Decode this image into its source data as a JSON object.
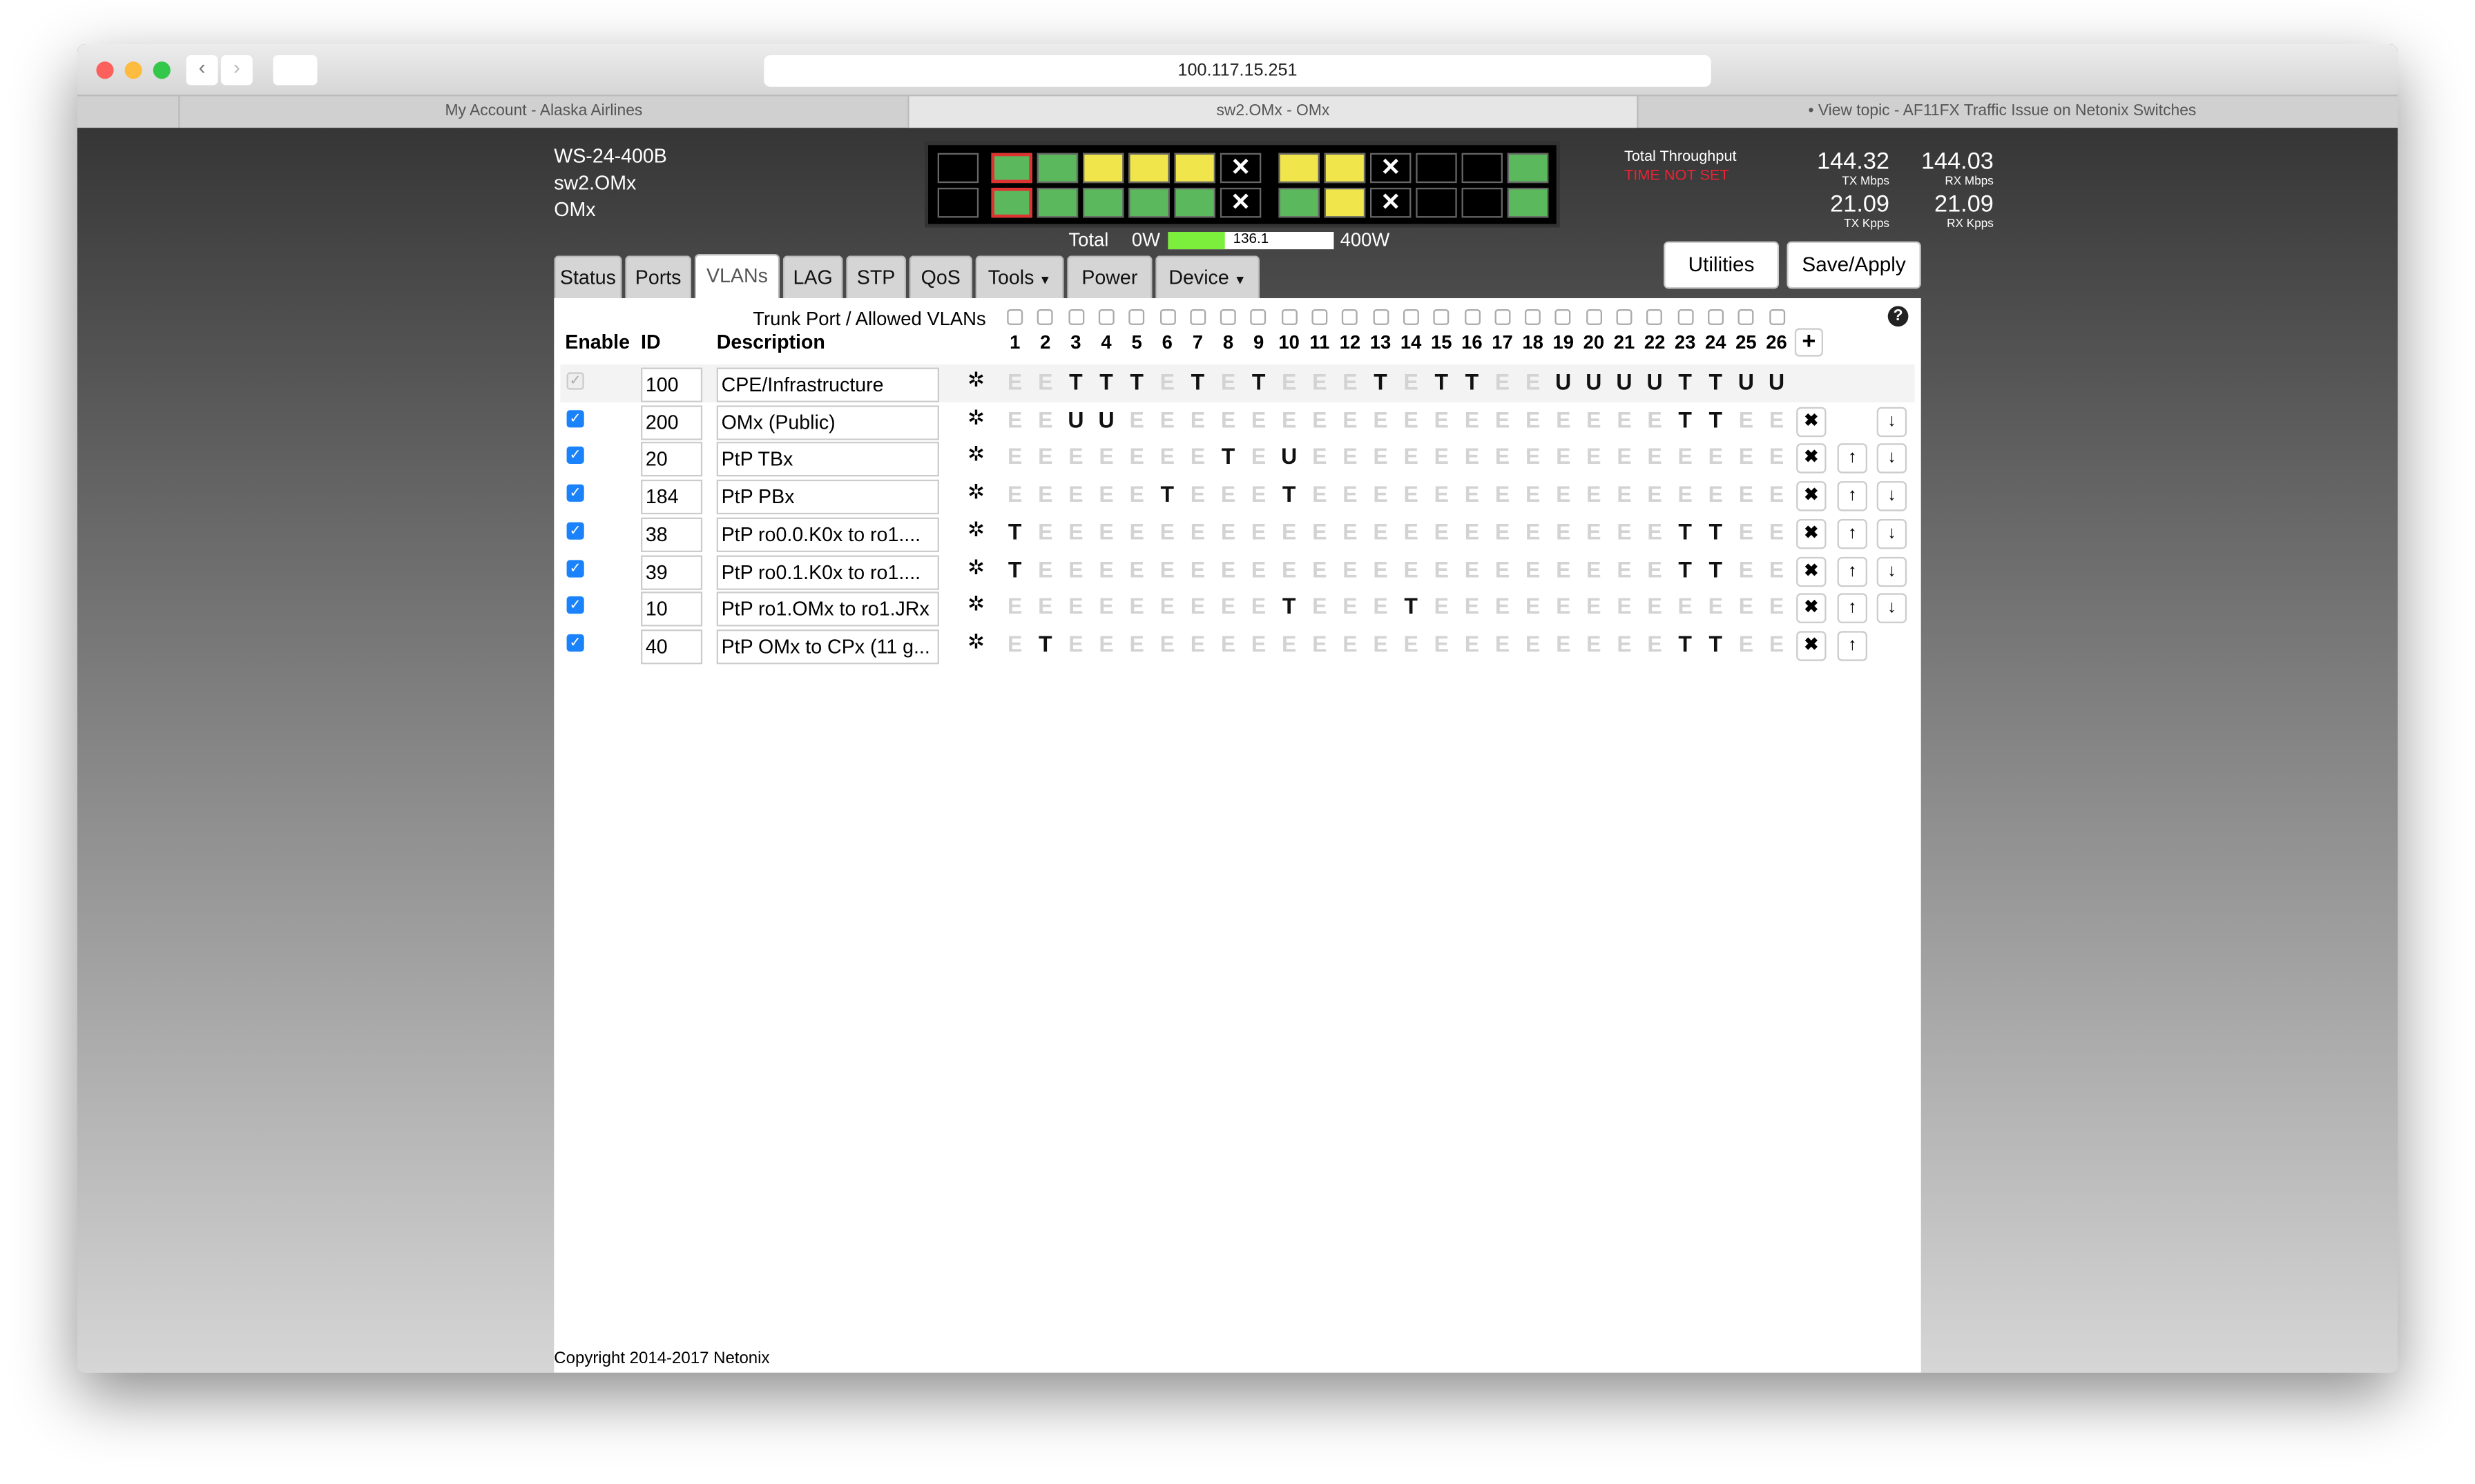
{
  "browser": {
    "url": "100.117.15.251",
    "tabs": [
      "My Account - Alaska Airlines",
      "sw2.OMx - OMx",
      "• View topic - AF11FX Traffic Issue on Netonix Switches"
    ]
  },
  "device": {
    "model": "WS-24-400B",
    "name": "sw2.OMx",
    "location": "OMx"
  },
  "power": {
    "label": "Total",
    "min": "0W",
    "value": 136.1,
    "max": "400W"
  },
  "throughput": {
    "title": "Total Throughput",
    "warning": "TIME NOT SET",
    "tx_mbps": {
      "value": 144.32,
      "unit": "TX Mbps"
    },
    "rx_mbps": {
      "value": 144.03,
      "unit": "RX Mbps"
    },
    "tx_kpps": {
      "value": 21.09,
      "unit": "TX Kpps"
    },
    "rx_kpps": {
      "value": 21.09,
      "unit": "RX Kpps"
    }
  },
  "nav": {
    "tabs": [
      "Status",
      "Ports",
      "VLANs",
      "LAG",
      "STP",
      "QoS",
      "Tools",
      "Power",
      "Device"
    ]
  },
  "buttons": [
    "Utilities",
    "Save/Apply"
  ],
  "vlans": {
    "trunk_label": "Trunk Port / Allowed VLANs",
    "headers": [
      "Enable",
      "ID",
      "Description"
    ],
    "ports": [
      1,
      2,
      3,
      4,
      5,
      6,
      7,
      8,
      9,
      10,
      11,
      12,
      13,
      14,
      15,
      16,
      17,
      18,
      19,
      20,
      21,
      22,
      23,
      24,
      25,
      26
    ],
    "rows": [
      {
        "enabled": true,
        "id": 100,
        "description": "CPE/Infrastructure",
        "ports": [
          "E",
          "E",
          "T",
          "T",
          "T",
          "E",
          "T",
          "E",
          "T",
          "E",
          "E",
          "E",
          "T",
          "E",
          "T",
          "T",
          "E",
          "E",
          "U",
          "U",
          "U",
          "U",
          "T",
          "T",
          "U",
          "U"
        ]
      },
      {
        "enabled": true,
        "id": 200,
        "description": "OMx (Public)",
        "ports": [
          "E",
          "E",
          "U",
          "U",
          "E",
          "E",
          "E",
          "E",
          "E",
          "E",
          "E",
          "E",
          "E",
          "E",
          "E",
          "E",
          "E",
          "E",
          "E",
          "E",
          "E",
          "E",
          "T",
          "T",
          "E",
          "E"
        ]
      },
      {
        "enabled": true,
        "id": 20,
        "description": "PtP TBx",
        "ports": [
          "E",
          "E",
          "E",
          "E",
          "E",
          "E",
          "E",
          "T",
          "E",
          "U",
          "E",
          "E",
          "E",
          "E",
          "E",
          "E",
          "E",
          "E",
          "E",
          "E",
          "E",
          "E",
          "E",
          "E",
          "E",
          "E"
        ]
      },
      {
        "enabled": true,
        "id": 184,
        "description": "PtP PBx",
        "ports": [
          "E",
          "E",
          "E",
          "E",
          "E",
          "T",
          "E",
          "E",
          "E",
          "T",
          "E",
          "E",
          "E",
          "E",
          "E",
          "E",
          "E",
          "E",
          "E",
          "E",
          "E",
          "E",
          "E",
          "E",
          "E",
          "E"
        ]
      },
      {
        "enabled": true,
        "id": 38,
        "description": "PtP ro0.0.K0x to ro1....",
        "ports": [
          "T",
          "E",
          "E",
          "E",
          "E",
          "E",
          "E",
          "E",
          "E",
          "E",
          "E",
          "E",
          "E",
          "E",
          "E",
          "E",
          "E",
          "E",
          "E",
          "E",
          "E",
          "E",
          "T",
          "T",
          "E",
          "E"
        ]
      },
      {
        "enabled": true,
        "id": 39,
        "description": "PtP ro0.1.K0x to ro1....",
        "ports": [
          "T",
          "E",
          "E",
          "E",
          "E",
          "E",
          "E",
          "E",
          "E",
          "E",
          "E",
          "E",
          "E",
          "E",
          "E",
          "E",
          "E",
          "E",
          "E",
          "E",
          "E",
          "E",
          "T",
          "T",
          "E",
          "E"
        ]
      },
      {
        "enabled": true,
        "id": 10,
        "description": "PtP ro1.OMx to ro1.JRx",
        "ports": [
          "E",
          "E",
          "E",
          "E",
          "E",
          "E",
          "E",
          "E",
          "E",
          "T",
          "E",
          "E",
          "E",
          "T",
          "E",
          "E",
          "E",
          "E",
          "E",
          "E",
          "E",
          "E",
          "E",
          "E",
          "E",
          "E"
        ]
      },
      {
        "enabled": true,
        "id": 40,
        "description": "PtP OMx to CPx (11 g...",
        "ports": [
          "E",
          "T",
          "E",
          "E",
          "E",
          "E",
          "E",
          "E",
          "E",
          "E",
          "E",
          "E",
          "E",
          "E",
          "E",
          "E",
          "E",
          "E",
          "E",
          "E",
          "E",
          "E",
          "T",
          "T",
          "E",
          "E"
        ]
      }
    ]
  },
  "footer": "Copyright 2014-2017 Netonix"
}
